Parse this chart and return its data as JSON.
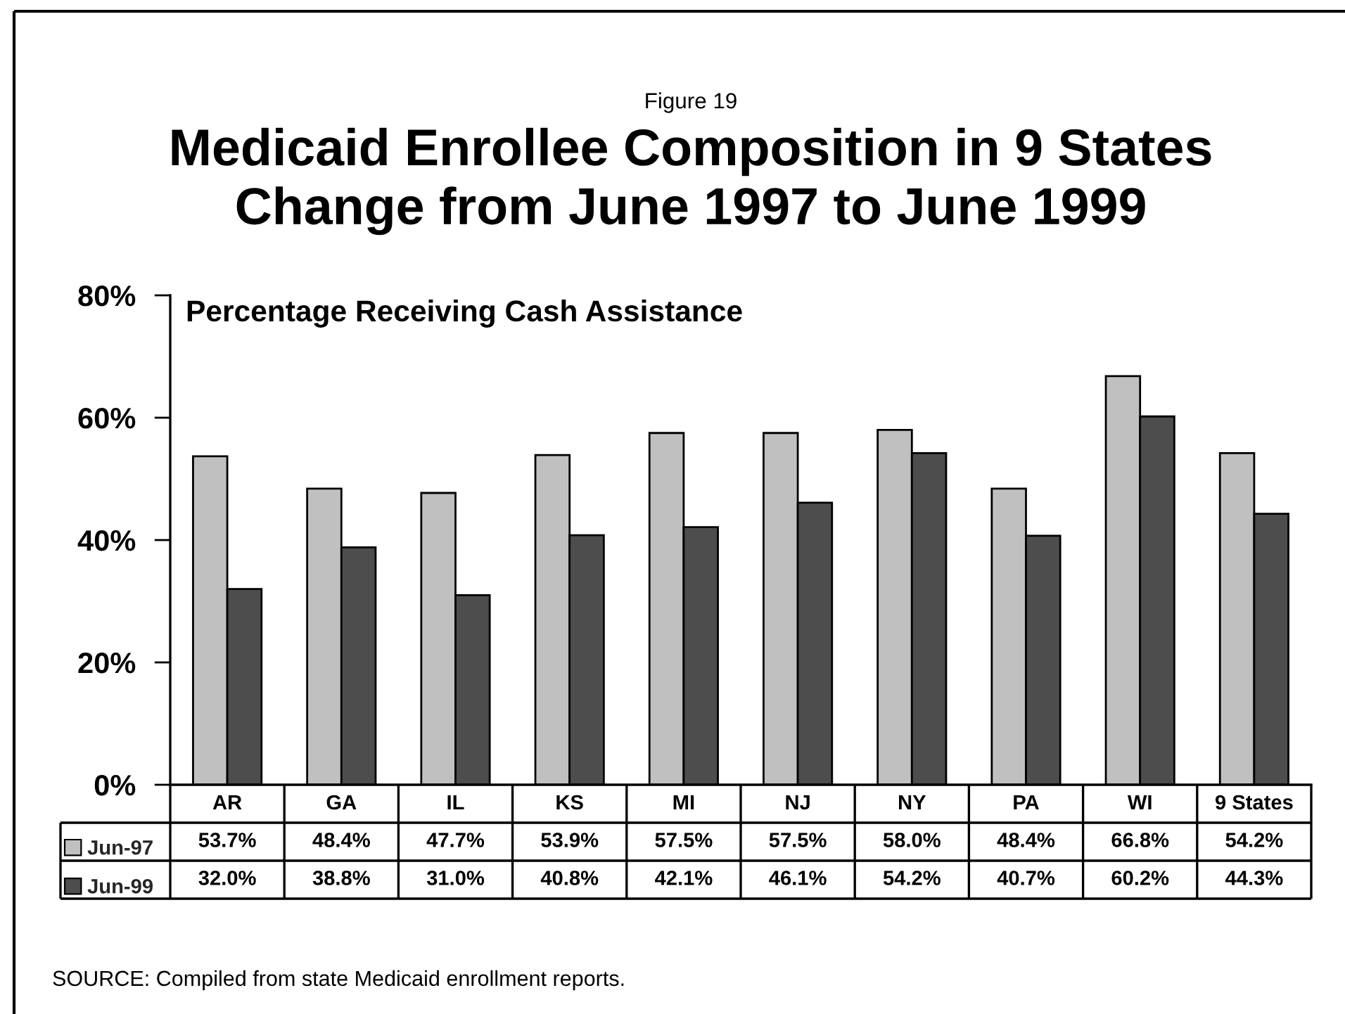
{
  "chart_data": {
    "type": "bar",
    "title": "Medicaid Enrollee Composition in 9 States\nChange from June 1997 to June 1999",
    "subtitle": "Percentage Receiving Cash Assistance",
    "annotations": [
      "Figure 19",
      "SOURCE: Compiled from state Medicaid enrollment reports."
    ],
    "categories": [
      "AR",
      "GA",
      "IL",
      "KS",
      "MI",
      "NJ",
      "NY",
      "PA",
      "WI",
      "9 States"
    ],
    "series": [
      {
        "name": "Jun-97",
        "color": "#c0c0c0",
        "values": [
          53.7,
          48.4,
          47.7,
          53.9,
          57.5,
          57.5,
          58.0,
          48.4,
          66.8,
          54.2
        ],
        "value_labels": [
          "53.7%",
          "48.4%",
          "47.7%",
          "53.9%",
          "57.5%",
          "57.5%",
          "58.0%",
          "48.4%",
          "66.8%",
          "54.2%"
        ]
      },
      {
        "name": "Jun-99",
        "color": "#4d4d4d",
        "values": [
          32.0,
          38.8,
          31.0,
          40.8,
          42.1,
          46.1,
          54.2,
          40.7,
          60.2,
          44.3
        ],
        "value_labels": [
          "32.0%",
          "38.8%",
          "31.0%",
          "40.8%",
          "42.1%",
          "46.1%",
          "54.2%",
          "40.7%",
          "60.2%",
          "44.3%"
        ]
      }
    ],
    "ylim": [
      0,
      80
    ],
    "yticks": [
      {
        "value": 0,
        "label": "0%"
      },
      {
        "value": 20,
        "label": "20%"
      },
      {
        "value": 40,
        "label": "40%"
      },
      {
        "value": 60,
        "label": "60%"
      },
      {
        "value": 80,
        "label": "80%"
      }
    ],
    "grid": false,
    "legend": "bottom left"
  }
}
